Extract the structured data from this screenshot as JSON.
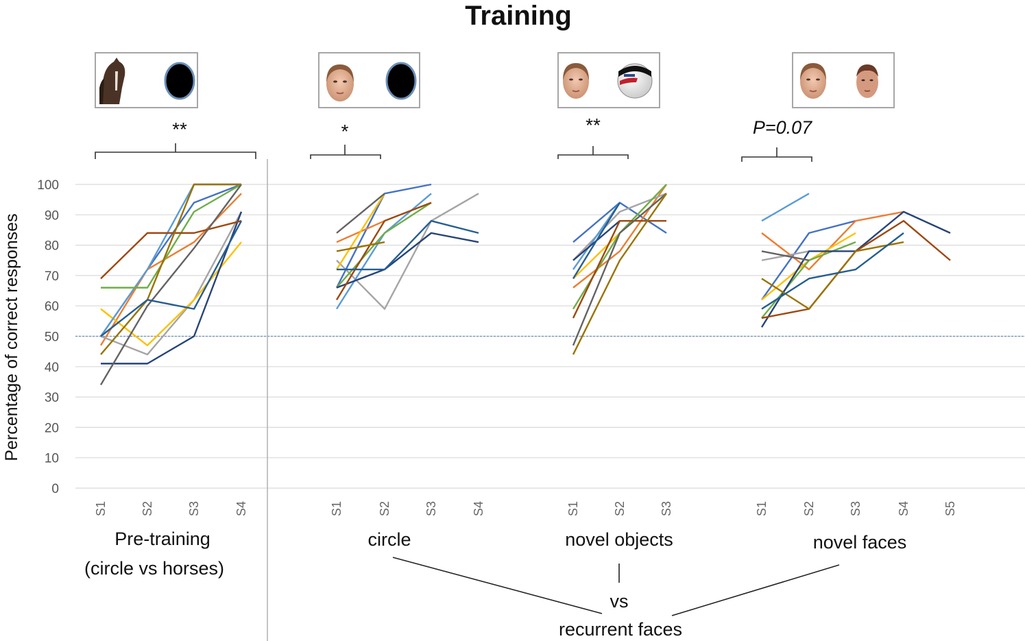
{
  "figure": {
    "title": "Training",
    "ylabel": "Percentage of correct responses",
    "comparison_vs": "vs",
    "comparison_target": "recurrent faces"
  },
  "chart_data": {
    "type": "line",
    "title": "Training",
    "ylabel": "Percentage of correct responses",
    "ylim": [
      0,
      100
    ],
    "yticks": [
      0,
      10,
      20,
      30,
      40,
      50,
      60,
      70,
      80,
      90,
      100
    ],
    "chance_line": 50,
    "grid": true,
    "colors": [
      "#4472c4",
      "#ed7d31",
      "#a5a5a5",
      "#ffc000",
      "#5b9bd5",
      "#70ad47",
      "#264478",
      "#9e480e",
      "#636363",
      "#997300",
      "#255e91",
      "#43682b"
    ],
    "panels": [
      {
        "label": "Pre-training",
        "label2": "(circle vs horses)",
        "significance": "**",
        "categories": [
          "S1",
          "S2",
          "S3",
          "S4"
        ],
        "series": [
          {
            "c": 0,
            "values": [
              50,
              72,
              94,
              100
            ]
          },
          {
            "c": 1,
            "values": [
              47,
              72,
              81,
              97
            ]
          },
          {
            "c": 2,
            "values": [
              50,
              44,
              62,
              91
            ]
          },
          {
            "c": 3,
            "values": [
              59,
              47,
              62,
              81
            ]
          },
          {
            "c": 4,
            "values": [
              50,
              72,
              100,
              100
            ]
          },
          {
            "c": 5,
            "values": [
              66,
              66,
              91,
              100
            ]
          },
          {
            "c": 6,
            "values": [
              41,
              41,
              50,
              91
            ]
          },
          {
            "c": 7,
            "values": [
              69,
              84,
              84,
              88
            ]
          },
          {
            "c": 8,
            "values": [
              34,
              60,
              79,
              100
            ]
          },
          {
            "c": 9,
            "values": [
              44,
              62,
              100,
              100
            ]
          },
          {
            "c": 10,
            "values": [
              50,
              62,
              59,
              88
            ]
          }
        ]
      },
      {
        "label": "circle",
        "significance": "*",
        "categories": [
          "S1",
          "S2",
          "S3",
          "S4"
        ],
        "series": [
          {
            "c": 0,
            "values": [
              66,
              97,
              100
            ]
          },
          {
            "c": 1,
            "values": [
              81,
              88
            ]
          },
          {
            "c": 2,
            "values": [
              75,
              59,
              88,
              97
            ]
          },
          {
            "c": 3,
            "values": [
              72,
              97
            ]
          },
          {
            "c": 4,
            "values": [
              59,
              84,
              97
            ]
          },
          {
            "c": 5,
            "values": [
              66,
              84,
              94
            ]
          },
          {
            "c": 6,
            "values": [
              66,
              72,
              84,
              81
            ]
          },
          {
            "c": 7,
            "values": [
              62,
              88,
              94
            ]
          },
          {
            "c": 8,
            "values": [
              84,
              97
            ]
          },
          {
            "c": 9,
            "values": [
              78,
              81
            ]
          },
          {
            "c": 10,
            "values": [
              72,
              72,
              88,
              84
            ]
          }
        ]
      },
      {
        "label": "novel objects",
        "significance": "**",
        "categories": [
          "S1",
          "S2",
          "S3"
        ],
        "series": [
          {
            "c": 0,
            "values": [
              81,
              94,
              84
            ]
          },
          {
            "c": 1,
            "values": [
              66,
              78,
              100
            ]
          },
          {
            "c": 2,
            "values": [
              75,
              91,
              97
            ]
          },
          {
            "c": 3,
            "values": [
              69,
              84,
              97
            ]
          },
          {
            "c": 4,
            "values": [
              72,
              94
            ]
          },
          {
            "c": 5,
            "values": [
              59,
              84,
              100
            ]
          },
          {
            "c": 6,
            "values": [
              75,
              88
            ]
          },
          {
            "c": 7,
            "values": [
              56,
              88,
              88
            ]
          },
          {
            "c": 8,
            "values": [
              47,
              84,
              97
            ]
          },
          {
            "c": 9,
            "values": [
              44,
              75,
              97
            ]
          },
          {
            "c": 10,
            "values": [
              69,
              94
            ]
          }
        ]
      },
      {
        "label": "novel faces",
        "significance": "P=0.07",
        "categories": [
          "S1",
          "S2",
          "S3",
          "S4",
          "S5"
        ],
        "series": [
          {
            "c": 0,
            "values": [
              62,
              84,
              88
            ]
          },
          {
            "c": 1,
            "values": [
              84,
              72,
              88,
              91
            ]
          },
          {
            "c": 2,
            "values": [
              75,
              78
            ]
          },
          {
            "c": 3,
            "values": [
              62,
              75,
              84
            ]
          },
          {
            "c": 4,
            "values": [
              88,
              97
            ]
          },
          {
            "c": 5,
            "values": [
              56,
              75,
              81
            ]
          },
          {
            "c": 6,
            "values": [
              53,
              78,
              78,
              91,
              84
            ]
          },
          {
            "c": 7,
            "values": [
              56,
              59,
              78,
              88,
              75
            ]
          },
          {
            "c": 8,
            "values": [
              78,
              75
            ]
          },
          {
            "c": 9,
            "values": [
              69,
              59,
              78,
              81
            ]
          },
          {
            "c": 10,
            "values": [
              59,
              69,
              72,
              84
            ]
          }
        ]
      }
    ]
  }
}
